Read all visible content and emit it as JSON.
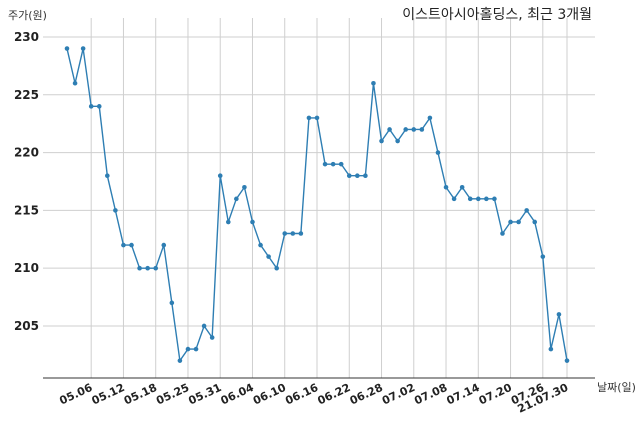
{
  "chart_data": {
    "type": "line",
    "title": "이스트아시아홀딩스, 최근 3개월",
    "ylabel": "주가(원)",
    "xlabel": "날짜(일)",
    "ylim": [
      200.5,
      230
    ],
    "yticks": [
      205,
      210,
      215,
      220,
      225,
      230
    ],
    "grid": true,
    "line_color": "#2e7eb3",
    "xticks": [
      {
        "label": "05.06",
        "index": 3
      },
      {
        "label": "05.12",
        "index": 7
      },
      {
        "label": "05.18",
        "index": 11
      },
      {
        "label": "05.25",
        "index": 15
      },
      {
        "label": "05.31",
        "index": 19
      },
      {
        "label": "06.04",
        "index": 23
      },
      {
        "label": "06.10",
        "index": 27
      },
      {
        "label": "06.16",
        "index": 31
      },
      {
        "label": "06.22",
        "index": 35
      },
      {
        "label": "06.28",
        "index": 39
      },
      {
        "label": "07.02",
        "index": 43
      },
      {
        "label": "07.08",
        "index": 47
      },
      {
        "label": "07.14",
        "index": 51
      },
      {
        "label": "07.20",
        "index": 55
      },
      {
        "label": "07.26",
        "index": 59
      },
      {
        "label": "21.07.30",
        "index": 62
      }
    ],
    "series": [
      {
        "values": [
          229,
          226,
          229,
          224,
          224,
          218,
          215,
          212,
          212,
          210,
          210,
          210,
          212,
          207,
          202,
          203,
          203,
          205,
          204,
          218,
          214,
          216,
          217,
          214,
          212,
          211,
          210,
          213,
          213,
          213,
          223,
          223,
          219,
          219,
          219,
          218,
          218,
          218,
          226,
          221,
          222,
          221,
          222,
          222,
          222,
          223,
          220,
          217,
          216,
          217,
          216,
          216,
          216,
          216,
          213,
          214,
          214,
          215,
          214,
          211,
          203,
          206,
          202
        ]
      }
    ]
  }
}
